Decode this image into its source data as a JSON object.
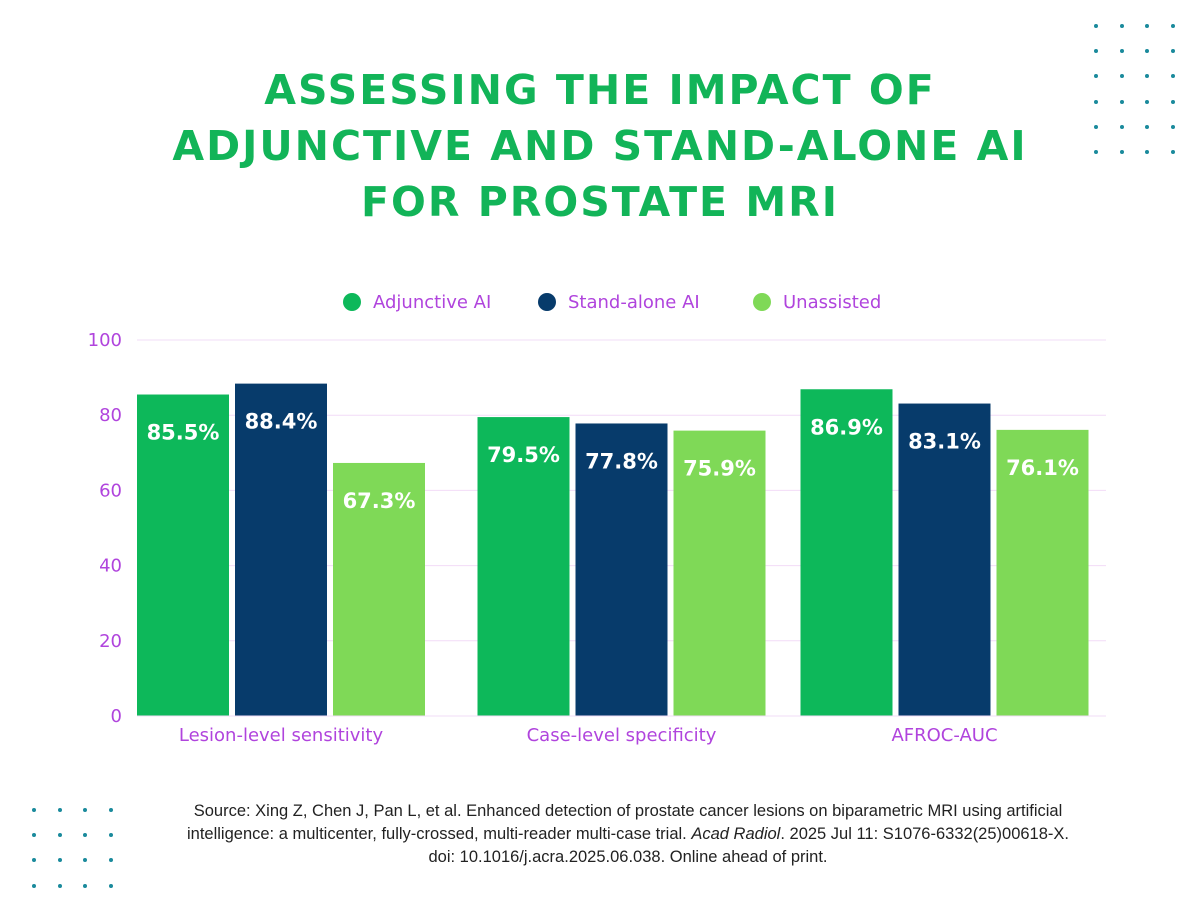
{
  "title_lines": [
    "ASSESSING THE IMPACT OF",
    "ADJUNCTIVE AND STAND-ALONE AI",
    "FOR PROSTATE MRI"
  ],
  "colors": {
    "adjunctive": "#0db85a",
    "standalone": "#073b6b",
    "unassisted": "#7fd957",
    "axis_text": "#b044dd",
    "title": "#12b458",
    "grid": "#f2dcf7",
    "dots": "#1a8a9c"
  },
  "chart_data": {
    "type": "bar",
    "title": "ASSESSING THE IMPACT OF ADJUNCTIVE AND STAND-ALONE AI FOR PROSTATE MRI",
    "categories": [
      "Lesion-level sensitivity",
      "Case-level specificity",
      "AFROC-AUC"
    ],
    "series": [
      {
        "name": "Adjunctive AI",
        "values": [
          85.5,
          79.5,
          86.9
        ],
        "labels": [
          "85.5%",
          "79.5%",
          "86.9%"
        ]
      },
      {
        "name": "Stand-alone AI",
        "values": [
          88.4,
          77.8,
          83.1
        ],
        "labels": [
          "88.4%",
          "77.8%",
          "83.1%"
        ]
      },
      {
        "name": "Unassisted",
        "values": [
          67.3,
          75.9,
          76.1
        ],
        "labels": [
          "67.3%",
          "75.9%",
          "76.1%"
        ]
      }
    ],
    "yticks": [
      "0",
      "20",
      "40",
      "60",
      "80",
      "100"
    ],
    "ylim": [
      0,
      100
    ],
    "xlabel": "",
    "ylabel": "",
    "grid": true,
    "legend": "top-center"
  },
  "source": {
    "line1": "Source: Xing Z, Chen J, Pan L, et al. Enhanced detection of prostate cancer lesions on biparametric MRI using artificial",
    "line2_pre": "intelligence: a multicenter, fully-crossed, multi-reader multi-case trial. ",
    "journal": "Acad Radiol",
    "line2_post": ". 2025 Jul 11: S1076-6332(25)00618-X.",
    "line3": "doi: 10.1016/j.acra.2025.06.038. Online ahead of print."
  }
}
